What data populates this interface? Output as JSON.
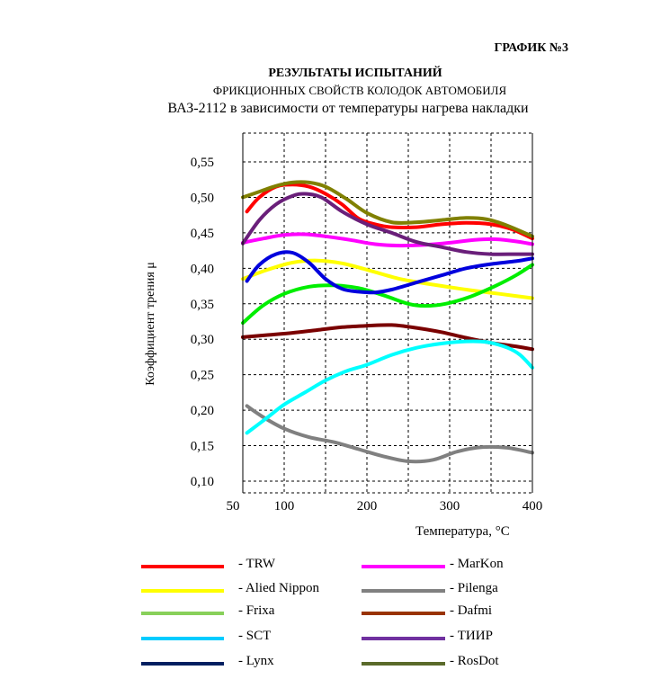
{
  "header": {
    "chart_number": "ГРАФИК №3",
    "title_line1": "РЕЗУЛЬТАТЫ ИСПЫТАНИЙ",
    "title_line2": "ФРИКЦИОННЫХ СВОЙСТВ КОЛОДОК АВТОМОБИЛЯ",
    "title_line3": "ВАЗ-2112 в зависимости от температуры нагрева накладки"
  },
  "chart_data": {
    "type": "line",
    "title": "РЕЗУЛЬТАТЫ ИСПЫТАНИЙ ФРИКЦИОННЫХ СВОЙСТВ КОЛОДОК АВТОМОБИЛЯ ВАЗ-2112 в зависимости от температуры нагрева накладки",
    "xlabel": "Температура, °С",
    "ylabel": "Коэффициент трения μ",
    "x_ticks": [
      50,
      100,
      200,
      300,
      400
    ],
    "y_ticks": [
      0.1,
      0.15,
      0.2,
      0.25,
      0.3,
      0.35,
      0.4,
      0.45,
      0.5,
      0.55
    ],
    "x_tick_labels": [
      "50",
      "100",
      "200",
      "300",
      "400"
    ],
    "y_tick_labels": [
      "0,10",
      "0,15",
      "0,20",
      "0,25",
      "0,30",
      "0,35",
      "0,40",
      "0,45",
      "0,50",
      "0,55"
    ],
    "xlim": [
      50,
      400
    ],
    "ylim": [
      0.09,
      0.58
    ],
    "grid": true,
    "legend_position": "bottom",
    "series": [
      {
        "name": "TRW",
        "color": "#ff0000",
        "legend_color": "#ff0000",
        "points": [
          [
            55,
            0.48
          ],
          [
            70,
            0.5
          ],
          [
            90,
            0.515
          ],
          [
            110,
            0.518
          ],
          [
            130,
            0.515
          ],
          [
            150,
            0.505
          ],
          [
            170,
            0.49
          ],
          [
            190,
            0.47
          ],
          [
            210,
            0.462
          ],
          [
            230,
            0.458
          ],
          [
            260,
            0.458
          ],
          [
            290,
            0.462
          ],
          [
            320,
            0.464
          ],
          [
            350,
            0.462
          ],
          [
            375,
            0.455
          ],
          [
            400,
            0.442
          ]
        ]
      },
      {
        "name": "MarKon",
        "color": "#ff00ff",
        "legend_color": "#ff00ff",
        "points": [
          [
            50,
            0.436
          ],
          [
            75,
            0.442
          ],
          [
            100,
            0.447
          ],
          [
            125,
            0.448
          ],
          [
            150,
            0.445
          ],
          [
            180,
            0.44
          ],
          [
            210,
            0.434
          ],
          [
            240,
            0.432
          ],
          [
            270,
            0.433
          ],
          [
            300,
            0.436
          ],
          [
            330,
            0.44
          ],
          [
            355,
            0.441
          ],
          [
            380,
            0.438
          ],
          [
            400,
            0.434
          ]
        ]
      },
      {
        "name": "Alied Nippon",
        "color": "#ffff00",
        "legend_color": "#ffff00",
        "points": [
          [
            50,
            0.385
          ],
          [
            80,
            0.398
          ],
          [
            110,
            0.408
          ],
          [
            140,
            0.411
          ],
          [
            170,
            0.407
          ],
          [
            200,
            0.398
          ],
          [
            240,
            0.385
          ],
          [
            280,
            0.377
          ],
          [
            320,
            0.37
          ],
          [
            360,
            0.364
          ],
          [
            400,
            0.358
          ]
        ]
      },
      {
        "name": "Pilenga",
        "color": "#808080",
        "legend_color": "#808080",
        "points": [
          [
            55,
            0.206
          ],
          [
            75,
            0.19
          ],
          [
            100,
            0.174
          ],
          [
            130,
            0.162
          ],
          [
            160,
            0.155
          ],
          [
            190,
            0.145
          ],
          [
            220,
            0.135
          ],
          [
            250,
            0.128
          ],
          [
            280,
            0.13
          ],
          [
            310,
            0.142
          ],
          [
            340,
            0.148
          ],
          [
            370,
            0.147
          ],
          [
            400,
            0.14
          ]
        ]
      },
      {
        "name": "Frixa",
        "color": "#00ee00",
        "legend_color": "#88d05a",
        "points": [
          [
            50,
            0.323
          ],
          [
            75,
            0.348
          ],
          [
            100,
            0.364
          ],
          [
            130,
            0.374
          ],
          [
            160,
            0.376
          ],
          [
            190,
            0.372
          ],
          [
            220,
            0.362
          ],
          [
            250,
            0.35
          ],
          [
            270,
            0.347
          ],
          [
            295,
            0.35
          ],
          [
            325,
            0.36
          ],
          [
            355,
            0.375
          ],
          [
            380,
            0.39
          ],
          [
            400,
            0.405
          ]
        ]
      },
      {
        "name": "Dafmi",
        "color": "#7a0000",
        "legend_color": "#993300",
        "points": [
          [
            50,
            0.303
          ],
          [
            80,
            0.306
          ],
          [
            110,
            0.309
          ],
          [
            140,
            0.313
          ],
          [
            170,
            0.317
          ],
          [
            200,
            0.319
          ],
          [
            230,
            0.32
          ],
          [
            260,
            0.316
          ],
          [
            290,
            0.31
          ],
          [
            320,
            0.302
          ],
          [
            350,
            0.295
          ],
          [
            380,
            0.29
          ],
          [
            400,
            0.286
          ]
        ]
      },
      {
        "name": "SCT",
        "color": "#00ffff",
        "legend_color": "#00ccff",
        "points": [
          [
            55,
            0.168
          ],
          [
            80,
            0.19
          ],
          [
            100,
            0.208
          ],
          [
            125,
            0.225
          ],
          [
            150,
            0.242
          ],
          [
            175,
            0.255
          ],
          [
            200,
            0.264
          ],
          [
            230,
            0.278
          ],
          [
            260,
            0.288
          ],
          [
            290,
            0.294
          ],
          [
            320,
            0.297
          ],
          [
            345,
            0.296
          ],
          [
            370,
            0.288
          ],
          [
            385,
            0.278
          ],
          [
            400,
            0.26
          ]
        ]
      },
      {
        "name": "ТИИР",
        "color": "#6a1f7a",
        "legend_color": "#7030a0",
        "points": [
          [
            50,
            0.435
          ],
          [
            70,
            0.468
          ],
          [
            90,
            0.49
          ],
          [
            110,
            0.502
          ],
          [
            125,
            0.505
          ],
          [
            145,
            0.5
          ],
          [
            170,
            0.48
          ],
          [
            200,
            0.462
          ],
          [
            230,
            0.45
          ],
          [
            260,
            0.437
          ],
          [
            290,
            0.43
          ],
          [
            320,
            0.423
          ],
          [
            350,
            0.42
          ],
          [
            380,
            0.42
          ],
          [
            400,
            0.42
          ]
        ]
      },
      {
        "name": "Lynx",
        "color": "#0000dd",
        "legend_color": "#001f60",
        "points": [
          [
            55,
            0.382
          ],
          [
            70,
            0.405
          ],
          [
            90,
            0.42
          ],
          [
            110,
            0.422
          ],
          [
            130,
            0.408
          ],
          [
            150,
            0.385
          ],
          [
            170,
            0.371
          ],
          [
            190,
            0.367
          ],
          [
            210,
            0.366
          ],
          [
            230,
            0.37
          ],
          [
            260,
            0.38
          ],
          [
            290,
            0.39
          ],
          [
            320,
            0.4
          ],
          [
            350,
            0.406
          ],
          [
            380,
            0.41
          ],
          [
            400,
            0.414
          ]
        ]
      },
      {
        "name": "RosDot",
        "color": "#808000",
        "legend_color": "#5a6a2a",
        "points": [
          [
            50,
            0.5
          ],
          [
            70,
            0.508
          ],
          [
            90,
            0.516
          ],
          [
            110,
            0.521
          ],
          [
            130,
            0.521
          ],
          [
            150,
            0.515
          ],
          [
            175,
            0.498
          ],
          [
            200,
            0.478
          ],
          [
            230,
            0.465
          ],
          [
            260,
            0.465
          ],
          [
            290,
            0.468
          ],
          [
            320,
            0.471
          ],
          [
            345,
            0.469
          ],
          [
            370,
            0.46
          ],
          [
            400,
            0.445
          ]
        ]
      }
    ]
  },
  "legend": {
    "dash": "-",
    "left": [
      "TRW",
      "Alied Nippon",
      "Frixa",
      "SCT",
      "Lynx"
    ],
    "right": [
      "MarKon",
      "Pilenga",
      "Dafmi",
      "ТИИР",
      "RosDot"
    ]
  }
}
